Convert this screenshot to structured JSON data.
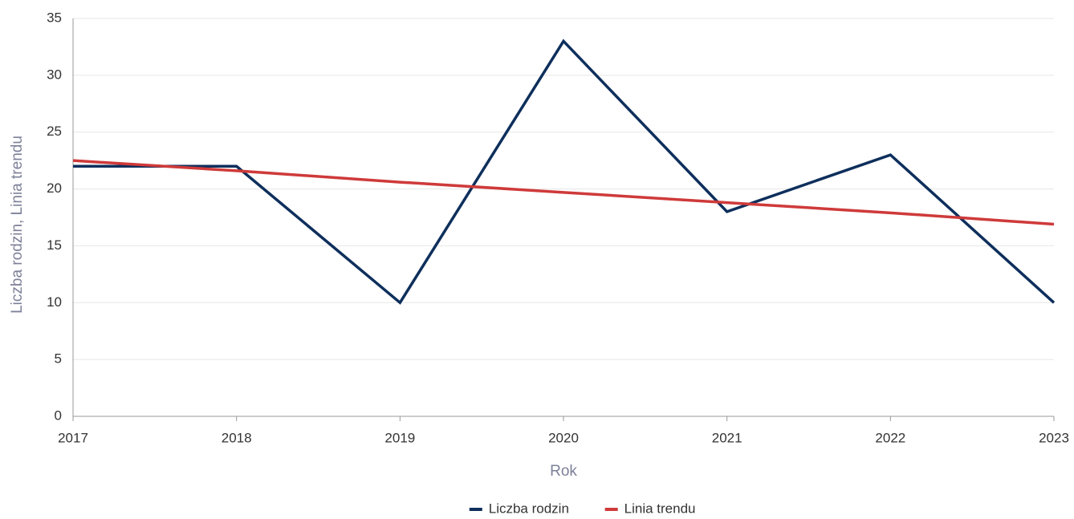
{
  "chart_data": {
    "type": "line",
    "x": [
      2017,
      2018,
      2019,
      2020,
      2021,
      2022,
      2023
    ],
    "series": [
      {
        "name": "Liczba rodzin",
        "color": "#0e2f5c",
        "values": [
          22,
          22,
          10,
          33,
          18,
          23,
          10
        ]
      },
      {
        "name": "Linia trendu",
        "color": "#cf3a3a",
        "values": [
          22.5,
          21.6,
          20.6,
          19.7,
          18.8,
          17.9,
          16.9
        ]
      }
    ],
    "xlabel": "Rok",
    "ylabel": "Liczba rodzin, Linia trendu",
    "xlim": [
      2017,
      2023
    ],
    "xticks": [
      2017,
      2018,
      2019,
      2020,
      2021,
      2022,
      2023
    ],
    "ylim": [
      0,
      35
    ],
    "yticks": [
      0,
      5,
      10,
      15,
      20,
      25,
      30,
      35
    ],
    "grid": true,
    "legend": "bottom"
  }
}
